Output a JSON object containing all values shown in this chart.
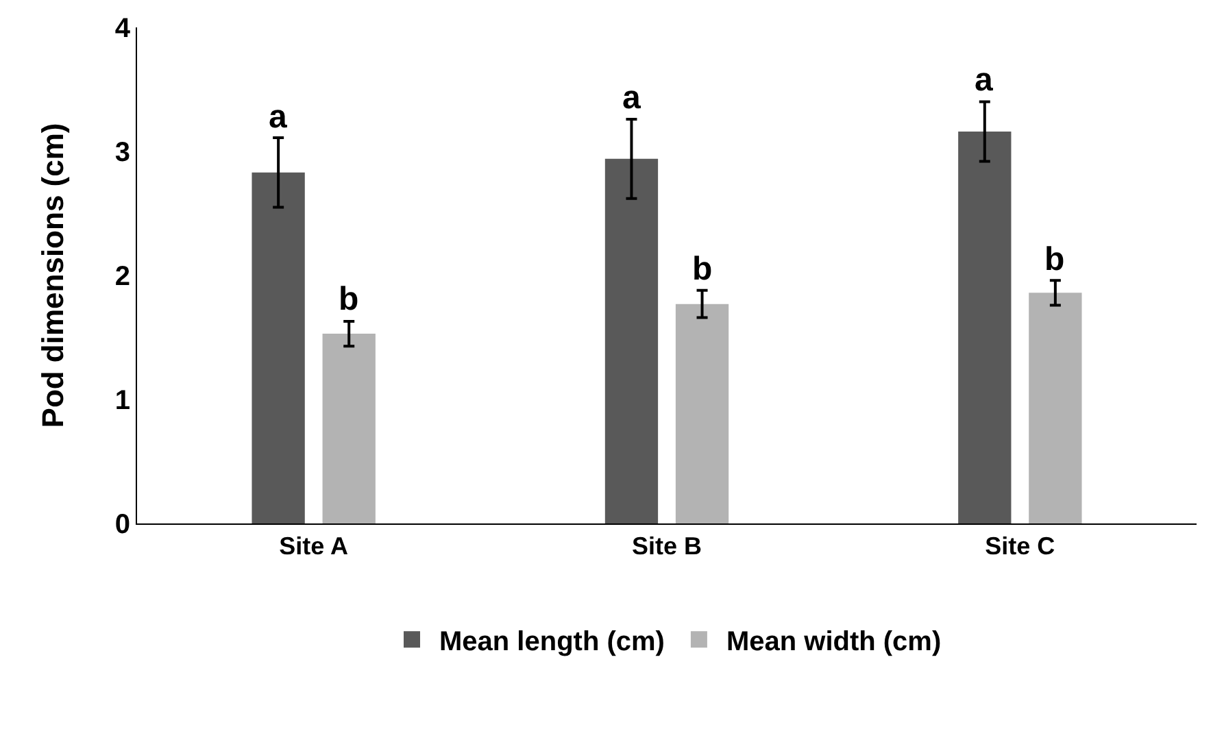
{
  "chart_data": {
    "type": "bar",
    "ylabel": "Pod dimensions (cm)",
    "categories": [
      "Site A",
      "Site B",
      "Site C"
    ],
    "series": [
      {
        "name": "Mean length (cm)",
        "color": "#595959",
        "values": [
          2.83,
          2.94,
          3.16
        ],
        "errors": [
          0.28,
          0.32,
          0.24
        ]
      },
      {
        "name": "Mean width (cm)",
        "color": "#b3b3b3",
        "values": [
          1.53,
          1.77,
          1.86
        ],
        "errors": [
          0.1,
          0.11,
          0.1
        ]
      }
    ],
    "ylim": [
      0,
      4
    ],
    "yticks": [
      0,
      1,
      2,
      3,
      4
    ],
    "grid": false,
    "legend": "bottom",
    "annotations": [
      "a",
      "b",
      "a",
      "b",
      "a",
      "b"
    ]
  }
}
